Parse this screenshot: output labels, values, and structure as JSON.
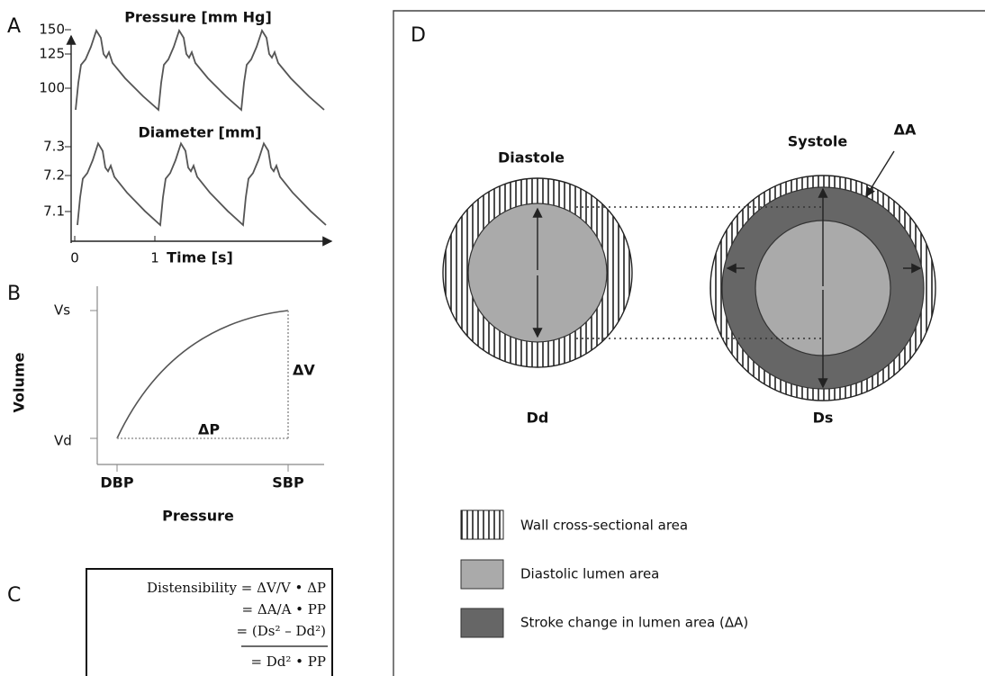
{
  "panels": {
    "a": {
      "label": "A",
      "pressure_title": "Pressure [mm Hg]",
      "pressure_ticks": [
        "150",
        "125",
        "100"
      ],
      "diameter_title": "Diameter [mm]",
      "diameter_ticks": [
        "7.3",
        "7.2",
        "7.1"
      ],
      "time_ticks": [
        "0",
        "1"
      ],
      "x_label": "Time [s]"
    },
    "b": {
      "label": "B",
      "y_label": "Volume",
      "x_label": "Pressure",
      "y_ticks": [
        "Vs",
        "Vd"
      ],
      "x_ticks": [
        "DBP",
        "SBP"
      ],
      "delta_v": "ΔV",
      "delta_p": "ΔP"
    },
    "c": {
      "label": "C",
      "lines": [
        "Distensibility = ΔV/V • ΔP",
        "= ΔA/A • PP",
        "= (Ds² – Dd²)",
        "= Dd² • PP"
      ]
    },
    "d": {
      "label": "D",
      "diastole": "Diastole",
      "systole": "Systole",
      "delta_a": "ΔA",
      "dd": "Dd",
      "ds": "Ds",
      "legend": [
        "Wall cross-sectional area",
        "Diastolic lumen area",
        "Stroke change in lumen area (ΔA)"
      ]
    }
  }
}
